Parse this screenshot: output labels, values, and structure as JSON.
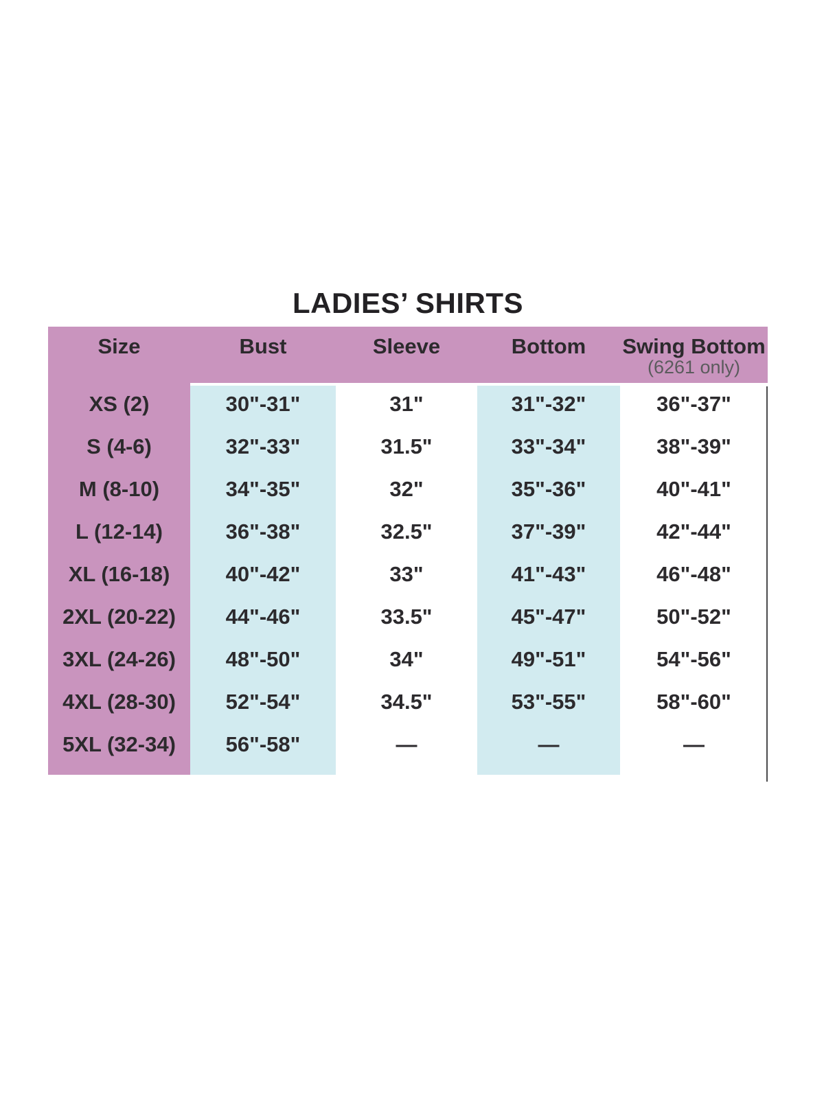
{
  "title": "LADIES’ SHIRTS",
  "colors": {
    "header_bg": "#c994be",
    "size_column_bg": "#c994be",
    "highlight_column_bg": "#d2ebf0",
    "text": "#2c2a2d",
    "subtext": "#5b5b5d",
    "right_rule": "#4a4a4c"
  },
  "table": {
    "columns": [
      {
        "key": "size",
        "label": "Size",
        "sublabel": ""
      },
      {
        "key": "bust",
        "label": "Bust",
        "sublabel": ""
      },
      {
        "key": "sleeve",
        "label": "Sleeve",
        "sublabel": ""
      },
      {
        "key": "bottom",
        "label": "Bottom",
        "sublabel": ""
      },
      {
        "key": "swing_bottom",
        "label": "Swing Bottom",
        "sublabel": "(6261 only)"
      }
    ],
    "rows": [
      {
        "size": "XS (2)",
        "bust": "30\"-31\"",
        "sleeve": "31\"",
        "bottom": "31\"-32\"",
        "swing_bottom": "36\"-37\""
      },
      {
        "size": "S (4-6)",
        "bust": "32\"-33\"",
        "sleeve": "31.5\"",
        "bottom": "33\"-34\"",
        "swing_bottom": "38\"-39\""
      },
      {
        "size": "M (8-10)",
        "bust": "34\"-35\"",
        "sleeve": "32\"",
        "bottom": "35\"-36\"",
        "swing_bottom": "40\"-41\""
      },
      {
        "size": "L (12-14)",
        "bust": "36\"-38\"",
        "sleeve": "32.5\"",
        "bottom": "37\"-39\"",
        "swing_bottom": "42\"-44\""
      },
      {
        "size": "XL (16-18)",
        "bust": "40\"-42\"",
        "sleeve": "33\"",
        "bottom": "41\"-43\"",
        "swing_bottom": "46\"-48\""
      },
      {
        "size": "2XL (20-22)",
        "bust": "44\"-46\"",
        "sleeve": "33.5\"",
        "bottom": "45\"-47\"",
        "swing_bottom": "50\"-52\""
      },
      {
        "size": "3XL (24-26)",
        "bust": "48\"-50\"",
        "sleeve": "34\"",
        "bottom": "49\"-51\"",
        "swing_bottom": "54\"-56\""
      },
      {
        "size": "4XL (28-30)",
        "bust": "52\"-54\"",
        "sleeve": "34.5\"",
        "bottom": "53\"-55\"",
        "swing_bottom": "58\"-60\""
      },
      {
        "size": "5XL (32-34)",
        "bust": "56\"-58\"",
        "sleeve": "—",
        "bottom": "—",
        "swing_bottom": "—"
      }
    ]
  }
}
